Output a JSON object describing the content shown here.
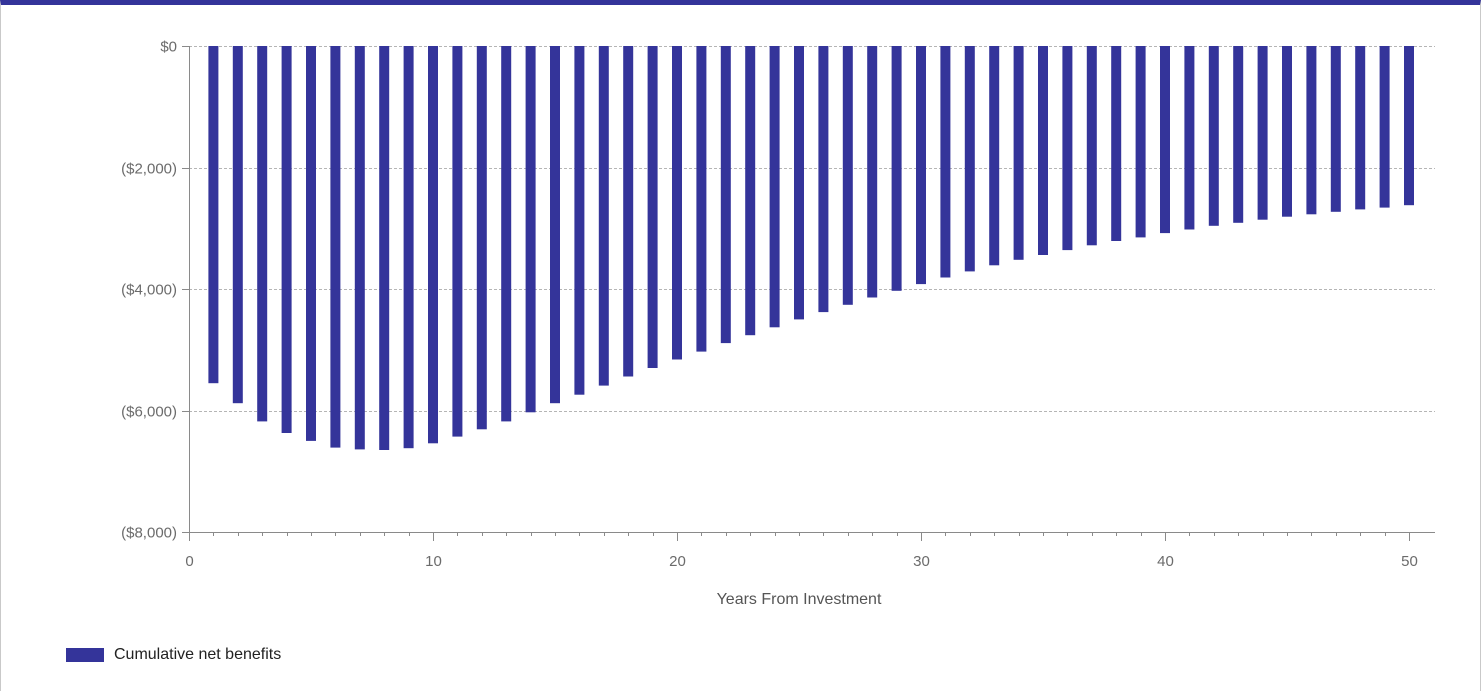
{
  "colors": {
    "bar": "#34349a",
    "grid": "#b5b5b5",
    "axis": "#8a8a8a",
    "frame_top": "#34349a"
  },
  "legend": {
    "label": "Cumulative net benefits"
  },
  "chart_data": {
    "type": "bar",
    "xlabel": "Years From Investment",
    "ylabel": "",
    "xlim": [
      0,
      51
    ],
    "ylim": [
      -8000,
      0
    ],
    "x_ticks": [
      0,
      10,
      20,
      30,
      40,
      50
    ],
    "x_tick_labels": [
      "0",
      "10",
      "20",
      "30",
      "40",
      "50"
    ],
    "y_ticks": [
      0,
      -2000,
      -4000,
      -6000,
      -8000
    ],
    "y_tick_labels": [
      "$0",
      "($2,000)",
      "($4,000)",
      "($6,000)",
      "($8,000)"
    ],
    "grid": "horizontal dashed",
    "legend_position": "bottom-left",
    "series": [
      {
        "name": "Cumulative net benefits",
        "x": [
          1,
          2,
          3,
          4,
          5,
          6,
          7,
          8,
          9,
          10,
          11,
          12,
          13,
          14,
          15,
          16,
          17,
          18,
          19,
          20,
          21,
          22,
          23,
          24,
          25,
          26,
          27,
          28,
          29,
          30,
          31,
          32,
          33,
          34,
          35,
          36,
          37,
          38,
          39,
          40,
          41,
          42,
          43,
          44,
          45,
          46,
          47,
          48,
          49,
          50
        ],
        "values": [
          -5550,
          -5880,
          -6180,
          -6370,
          -6500,
          -6610,
          -6640,
          -6650,
          -6620,
          -6540,
          -6430,
          -6310,
          -6180,
          -6030,
          -5880,
          -5740,
          -5590,
          -5440,
          -5300,
          -5160,
          -5030,
          -4890,
          -4760,
          -4630,
          -4500,
          -4380,
          -4260,
          -4140,
          -4030,
          -3920,
          -3810,
          -3710,
          -3610,
          -3520,
          -3440,
          -3360,
          -3280,
          -3210,
          -3150,
          -3080,
          -3020,
          -2960,
          -2910,
          -2860,
          -2810,
          -2770,
          -2730,
          -2690,
          -2660,
          -2620
        ]
      }
    ]
  }
}
